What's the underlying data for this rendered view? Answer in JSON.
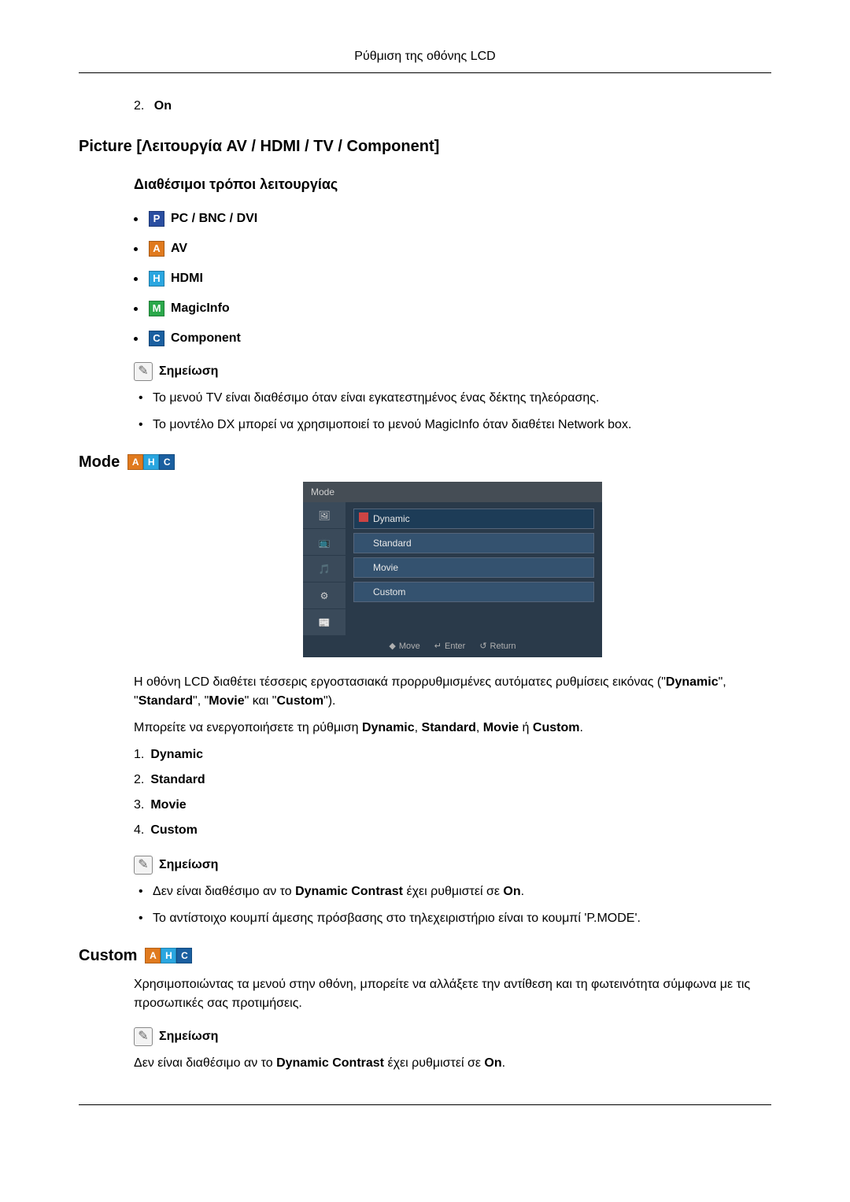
{
  "header": {
    "title": "Ρύθμιση της οθόνης LCD"
  },
  "topList": {
    "num": "2.",
    "label": "On"
  },
  "picture": {
    "title": "Picture [Λειτουργία AV / HDMI / TV / Component]",
    "modesTitle": "Διαθέσιμοι τρόποι λειτουργίας",
    "modes": [
      {
        "letter": "P",
        "bg": "#2a4ea0",
        "label": "PC / BNC / DVI"
      },
      {
        "letter": "A",
        "bg": "#e07a1e",
        "label": "AV"
      },
      {
        "letter": "H",
        "bg": "#2aa6e0",
        "label": "HDMI"
      },
      {
        "letter": "M",
        "bg": "#2aa84a",
        "label": "MagicInfo"
      },
      {
        "letter": "C",
        "bg": "#1a5fa0",
        "label": "Component"
      }
    ],
    "noteLabel": "Σημείωση",
    "notes": [
      "Το μενού TV είναι διαθέσιμο όταν είναι εγκατεστημένος ένας δέκτης τηλεόρασης.",
      "Το μοντέλο DX μπορεί να χρησιμοποιεί το μενού MagicInfo όταν διαθέτει Network box."
    ]
  },
  "mode": {
    "title": "Mode",
    "icons": [
      {
        "letter": "A",
        "bg": "#e07a1e"
      },
      {
        "letter": "H",
        "bg": "#2aa6e0"
      },
      {
        "letter": "C",
        "bg": "#1a5fa0"
      }
    ],
    "osd": {
      "title": "Mode",
      "options": [
        "Dynamic",
        "Standard",
        "Movie",
        "Custom"
      ],
      "selectedIndex": 0,
      "footer": {
        "move": "Move",
        "enter": "Enter",
        "return": "Return"
      },
      "colors": {
        "panel": "#2a3a4a",
        "titleBar": "#454d55",
        "side": "#3a4a5a",
        "option": "#34526f",
        "optionSel": "#1d3c57",
        "border": "#55657a"
      }
    },
    "para1_a": "Η οθόνη LCD διαθέτει τέσσερις εργοστασιακά προρρυθμισμένες αυτόματες ρυθμίσεις εικόνας (\"",
    "para1_b": "Dynamic",
    "para1_c": "\", \"",
    "para1_d": "Standard",
    "para1_e": "\", \"",
    "para1_f": "Movie",
    "para1_g": "\" και \"",
    "para1_h": "Custom",
    "para1_i": "\").",
    "para2_a": "Μπορείτε να ενεργοποιήσετε τη ρύθμιση ",
    "para2_b": "Dynamic",
    "para2_c": ", ",
    "para2_d": "Standard",
    "para2_e": ", ",
    "para2_f": "Movie",
    "para2_g": " ή ",
    "para2_h": "Custom",
    "para2_i": ".",
    "numbered": [
      {
        "n": "1.",
        "label": "Dynamic"
      },
      {
        "n": "2.",
        "label": "Standard"
      },
      {
        "n": "3.",
        "label": "Movie"
      },
      {
        "n": "4.",
        "label": "Custom"
      }
    ],
    "noteLabel": "Σημείωση",
    "notes2": [
      {
        "pre": "Δεν είναι διαθέσιμο αν το ",
        "b1": "Dynamic Contrast",
        "mid": " έχει ρυθμιστεί σε ",
        "b2": "On",
        "post": "."
      },
      {
        "plain": "Το αντίστοιχο κουμπί άμεσης πρόσβασης στο τηλεχειριστήριο είναι το κουμπί 'P.MODE'."
      }
    ]
  },
  "custom": {
    "title": "Custom",
    "icons": [
      {
        "letter": "A",
        "bg": "#e07a1e"
      },
      {
        "letter": "H",
        "bg": "#2aa6e0"
      },
      {
        "letter": "C",
        "bg": "#1a5fa0"
      }
    ],
    "para": "Χρησιμοποιώντας τα μενού στην οθόνη, μπορείτε να αλλάξετε την αντίθεση και τη φωτεινότητα σύμφωνα με τις προσωπικές σας προτιμήσεις.",
    "noteLabel": "Σημείωση",
    "note_pre": "Δεν είναι διαθέσιμο αν το ",
    "note_b1": "Dynamic Contrast",
    "note_mid": " έχει ρυθμιστεί σε ",
    "note_b2": "On",
    "note_post": "."
  }
}
